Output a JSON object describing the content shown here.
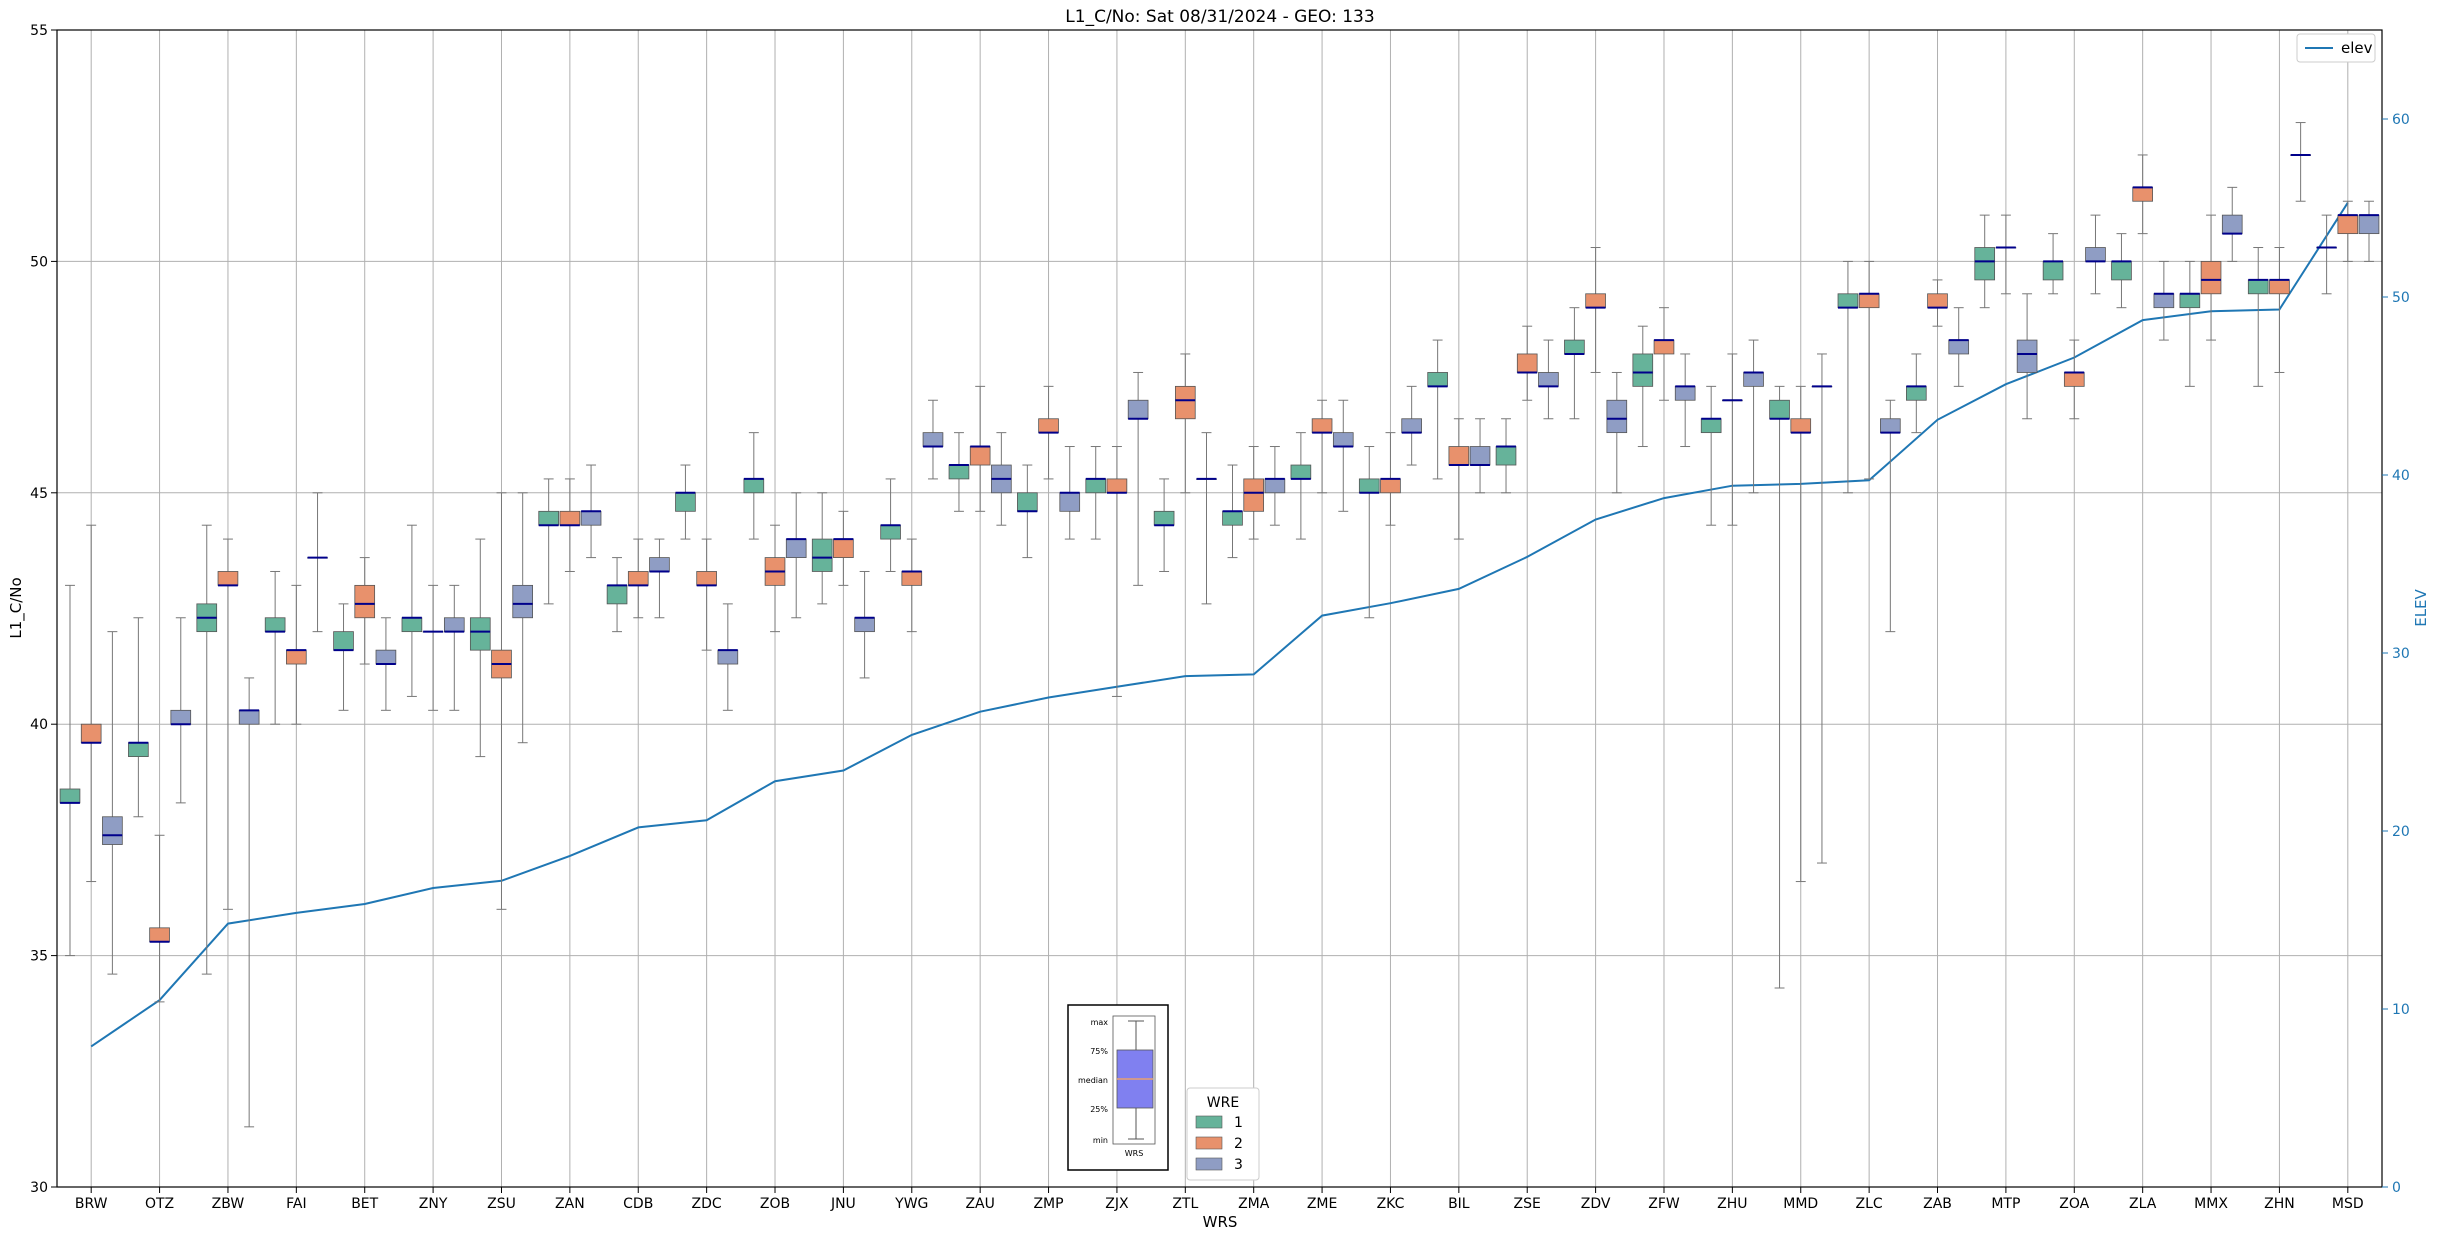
{
  "chart_data": {
    "type": "box",
    "title": "L1_C/No: Sat 08/31/2024 - GEO: 133",
    "xlabel": "WRS",
    "ylabel": "L1_C/No",
    "y2label": "ELEV",
    "ylim": [
      30,
      55
    ],
    "y2lim": [
      0,
      65
    ],
    "yticks": [
      30,
      35,
      40,
      45,
      50,
      55
    ],
    "y2ticks": [
      0,
      10,
      20,
      30,
      40,
      50,
      60
    ],
    "grid": true,
    "categories": [
      "BRW",
      "OTZ",
      "ZBW",
      "FAI",
      "BET",
      "ZNY",
      "ZSU",
      "ZAN",
      "CDB",
      "ZDC",
      "ZOB",
      "JNU",
      "YWG",
      "ZAU",
      "ZMP",
      "ZJX",
      "ZTL",
      "ZMA",
      "ZME",
      "ZKC",
      "BIL",
      "ZSE",
      "ZDV",
      "ZFW",
      "ZHU",
      "MMD",
      "ZLC",
      "ZAB",
      "MTP",
      "ZOA",
      "ZLA",
      "MMX",
      "ZHN",
      "MSD"
    ],
    "legend": {
      "title": "WRE",
      "placement": "lower-center",
      "entries": [
        {
          "label": "1",
          "color": "#66b39a"
        },
        {
          "label": "2",
          "color": "#e8916c"
        },
        {
          "label": "3",
          "color": "#8f9dc4"
        }
      ]
    },
    "line_legend": {
      "label": "elev",
      "placement": "upper-right",
      "color": "#1f77b4"
    },
    "key_labels": [
      "max",
      "75%",
      "median",
      "25%",
      "min",
      "WRS"
    ],
    "elev": [
      7.9,
      10.5,
      14.8,
      15.4,
      15.9,
      16.8,
      17.2,
      18.6,
      20.2,
      20.6,
      22.8,
      23.4,
      25.4,
      26.7,
      27.5,
      28.1,
      28.7,
      28.8,
      32.1,
      32.8,
      33.6,
      35.4,
      37.5,
      38.7,
      39.4,
      39.5,
      39.7,
      43.1,
      45.1,
      46.6,
      48.7,
      49.2,
      49.3,
      55.3
    ],
    "boxes": [
      {
        "category": "BRW",
        "wre": 1,
        "min": 35.0,
        "q1": 38.3,
        "median": 38.3,
        "q3": 38.6,
        "max": 43.0
      },
      {
        "category": "BRW",
        "wre": 2,
        "min": 36.6,
        "q1": 39.6,
        "median": 39.6,
        "q3": 40.0,
        "max": 44.3
      },
      {
        "category": "BRW",
        "wre": 3,
        "min": 34.6,
        "q1": 37.4,
        "median": 37.6,
        "q3": 38.0,
        "max": 42.0
      },
      {
        "category": "OTZ",
        "wre": 1,
        "min": 38.0,
        "q1": 39.3,
        "median": 39.6,
        "q3": 39.6,
        "max": 42.3
      },
      {
        "category": "OTZ",
        "wre": 2,
        "min": 34.0,
        "q1": 35.3,
        "median": 35.3,
        "q3": 35.6,
        "max": 37.6
      },
      {
        "category": "OTZ",
        "wre": 3,
        "min": 38.3,
        "q1": 40.0,
        "median": 40.0,
        "q3": 40.3,
        "max": 42.3
      },
      {
        "category": "ZBW",
        "wre": 1,
        "min": 34.6,
        "q1": 42.0,
        "median": 42.3,
        "q3": 42.6,
        "max": 44.3
      },
      {
        "category": "ZBW",
        "wre": 2,
        "min": 36.0,
        "q1": 43.0,
        "median": 43.0,
        "q3": 43.3,
        "max": 44.0
      },
      {
        "category": "ZBW",
        "wre": 3,
        "min": 31.3,
        "q1": 40.0,
        "median": 40.3,
        "q3": 40.3,
        "max": 41.0
      },
      {
        "category": "FAI",
        "wre": 1,
        "min": 40.0,
        "q1": 42.0,
        "median": 42.0,
        "q3": 42.3,
        "max": 43.3
      },
      {
        "category": "FAI",
        "wre": 2,
        "min": 40.0,
        "q1": 41.3,
        "median": 41.6,
        "q3": 41.6,
        "max": 43.0
      },
      {
        "category": "FAI",
        "wre": 3,
        "min": 42.0,
        "q1": 43.6,
        "median": 43.6,
        "q3": 43.6,
        "max": 45.0
      },
      {
        "category": "BET",
        "wre": 1,
        "min": 40.3,
        "q1": 41.6,
        "median": 41.6,
        "q3": 42.0,
        "max": 42.6
      },
      {
        "category": "BET",
        "wre": 2,
        "min": 41.3,
        "q1": 42.3,
        "median": 42.6,
        "q3": 43.0,
        "max": 43.6
      },
      {
        "category": "BET",
        "wre": 3,
        "min": 40.3,
        "q1": 41.3,
        "median": 41.3,
        "q3": 41.6,
        "max": 42.3
      },
      {
        "category": "ZNY",
        "wre": 1,
        "min": 40.6,
        "q1": 42.0,
        "median": 42.3,
        "q3": 42.3,
        "max": 44.3
      },
      {
        "category": "ZNY",
        "wre": 2,
        "min": 40.3,
        "q1": 42.0,
        "median": 42.0,
        "q3": 42.0,
        "max": 43.0
      },
      {
        "category": "ZNY",
        "wre": 3,
        "min": 40.3,
        "q1": 42.0,
        "median": 42.0,
        "q3": 42.3,
        "max": 43.0
      },
      {
        "category": "ZSU",
        "wre": 1,
        "min": 39.3,
        "q1": 41.6,
        "median": 42.0,
        "q3": 42.3,
        "max": 44.0
      },
      {
        "category": "ZSU",
        "wre": 2,
        "min": 36.0,
        "q1": 41.0,
        "median": 41.3,
        "q3": 41.6,
        "max": 45.0
      },
      {
        "category": "ZSU",
        "wre": 3,
        "min": 39.6,
        "q1": 42.3,
        "median": 42.6,
        "q3": 43.0,
        "max": 45.0
      },
      {
        "category": "ZAN",
        "wre": 1,
        "min": 42.6,
        "q1": 44.3,
        "median": 44.3,
        "q3": 44.6,
        "max": 45.3
      },
      {
        "category": "ZAN",
        "wre": 2,
        "min": 43.3,
        "q1": 44.3,
        "median": 44.3,
        "q3": 44.6,
        "max": 45.3
      },
      {
        "category": "ZAN",
        "wre": 3,
        "min": 43.6,
        "q1": 44.3,
        "median": 44.6,
        "q3": 44.6,
        "max": 45.6
      },
      {
        "category": "CDB",
        "wre": 1,
        "min": 42.0,
        "q1": 42.6,
        "median": 43.0,
        "q3": 43.0,
        "max": 43.6
      },
      {
        "category": "CDB",
        "wre": 2,
        "min": 42.3,
        "q1": 43.0,
        "median": 43.0,
        "q3": 43.3,
        "max": 44.0
      },
      {
        "category": "CDB",
        "wre": 3,
        "min": 42.3,
        "q1": 43.3,
        "median": 43.3,
        "q3": 43.6,
        "max": 44.0
      },
      {
        "category": "ZDC",
        "wre": 1,
        "min": 44.0,
        "q1": 44.6,
        "median": 45.0,
        "q3": 45.0,
        "max": 45.6
      },
      {
        "category": "ZDC",
        "wre": 2,
        "min": 41.6,
        "q1": 43.0,
        "median": 43.0,
        "q3": 43.3,
        "max": 44.0
      },
      {
        "category": "ZDC",
        "wre": 3,
        "min": 40.3,
        "q1": 41.3,
        "median": 41.6,
        "q3": 41.6,
        "max": 42.6
      },
      {
        "category": "ZOB",
        "wre": 1,
        "min": 44.0,
        "q1": 45.0,
        "median": 45.3,
        "q3": 45.3,
        "max": 46.3
      },
      {
        "category": "ZOB",
        "wre": 2,
        "min": 42.0,
        "q1": 43.0,
        "median": 43.3,
        "q3": 43.6,
        "max": 44.3
      },
      {
        "category": "ZOB",
        "wre": 3,
        "min": 42.3,
        "q1": 43.6,
        "median": 44.0,
        "q3": 44.0,
        "max": 45.0
      },
      {
        "category": "JNU",
        "wre": 1,
        "min": 42.6,
        "q1": 43.3,
        "median": 43.6,
        "q3": 44.0,
        "max": 45.0
      },
      {
        "category": "JNU",
        "wre": 2,
        "min": 43.0,
        "q1": 43.6,
        "median": 44.0,
        "q3": 44.0,
        "max": 44.6
      },
      {
        "category": "JNU",
        "wre": 3,
        "min": 41.0,
        "q1": 42.0,
        "median": 42.3,
        "q3": 42.3,
        "max": 43.3
      },
      {
        "category": "YWG",
        "wre": 1,
        "min": 43.3,
        "q1": 44.0,
        "median": 44.3,
        "q3": 44.3,
        "max": 45.3
      },
      {
        "category": "YWG",
        "wre": 2,
        "min": 42.0,
        "q1": 43.0,
        "median": 43.3,
        "q3": 43.3,
        "max": 44.0
      },
      {
        "category": "YWG",
        "wre": 3,
        "min": 45.3,
        "q1": 46.0,
        "median": 46.0,
        "q3": 46.3,
        "max": 47.0
      },
      {
        "category": "ZAU",
        "wre": 1,
        "min": 44.6,
        "q1": 45.3,
        "median": 45.6,
        "q3": 45.6,
        "max": 46.3
      },
      {
        "category": "ZAU",
        "wre": 2,
        "min": 44.6,
        "q1": 45.6,
        "median": 46.0,
        "q3": 46.0,
        "max": 47.3
      },
      {
        "category": "ZAU",
        "wre": 3,
        "min": 44.3,
        "q1": 45.0,
        "median": 45.3,
        "q3": 45.6,
        "max": 46.3
      },
      {
        "category": "ZMP",
        "wre": 1,
        "min": 43.6,
        "q1": 44.6,
        "median": 44.6,
        "q3": 45.0,
        "max": 45.6
      },
      {
        "category": "ZMP",
        "wre": 2,
        "min": 45.3,
        "q1": 46.3,
        "median": 46.3,
        "q3": 46.6,
        "max": 47.3
      },
      {
        "category": "ZMP",
        "wre": 3,
        "min": 44.0,
        "q1": 44.6,
        "median": 45.0,
        "q3": 45.0,
        "max": 46.0
      },
      {
        "category": "ZJX",
        "wre": 1,
        "min": 44.0,
        "q1": 45.0,
        "median": 45.3,
        "q3": 45.3,
        "max": 46.0
      },
      {
        "category": "ZJX",
        "wre": 2,
        "min": 40.6,
        "q1": 45.0,
        "median": 45.0,
        "q3": 45.3,
        "max": 46.0
      },
      {
        "category": "ZJX",
        "wre": 3,
        "min": 43.0,
        "q1": 46.6,
        "median": 46.6,
        "q3": 47.0,
        "max": 47.6
      },
      {
        "category": "ZTL",
        "wre": 1,
        "min": 43.3,
        "q1": 44.3,
        "median": 44.3,
        "q3": 44.6,
        "max": 45.3
      },
      {
        "category": "ZTL",
        "wre": 2,
        "min": 45.0,
        "q1": 46.6,
        "median": 47.0,
        "q3": 47.3,
        "max": 48.0
      },
      {
        "category": "ZTL",
        "wre": 3,
        "min": 42.6,
        "q1": 45.3,
        "median": 45.3,
        "q3": 45.3,
        "max": 46.3
      },
      {
        "category": "ZMA",
        "wre": 1,
        "min": 43.6,
        "q1": 44.3,
        "median": 44.6,
        "q3": 44.6,
        "max": 45.6
      },
      {
        "category": "ZMA",
        "wre": 2,
        "min": 44.0,
        "q1": 44.6,
        "median": 45.0,
        "q3": 45.3,
        "max": 46.0
      },
      {
        "category": "ZMA",
        "wre": 3,
        "min": 44.3,
        "q1": 45.0,
        "median": 45.3,
        "q3": 45.3,
        "max": 46.0
      },
      {
        "category": "ZME",
        "wre": 1,
        "min": 44.0,
        "q1": 45.3,
        "median": 45.3,
        "q3": 45.6,
        "max": 46.3
      },
      {
        "category": "ZME",
        "wre": 2,
        "min": 45.0,
        "q1": 46.3,
        "median": 46.3,
        "q3": 46.6,
        "max": 47.0
      },
      {
        "category": "ZME",
        "wre": 3,
        "min": 44.6,
        "q1": 46.0,
        "median": 46.0,
        "q3": 46.3,
        "max": 47.0
      },
      {
        "category": "ZKC",
        "wre": 1,
        "min": 42.3,
        "q1": 45.0,
        "median": 45.0,
        "q3": 45.3,
        "max": 46.0
      },
      {
        "category": "ZKC",
        "wre": 2,
        "min": 44.3,
        "q1": 45.0,
        "median": 45.3,
        "q3": 45.3,
        "max": 46.3
      },
      {
        "category": "ZKC",
        "wre": 3,
        "min": 45.6,
        "q1": 46.3,
        "median": 46.3,
        "q3": 46.6,
        "max": 47.3
      },
      {
        "category": "BIL",
        "wre": 1,
        "min": 45.3,
        "q1": 47.3,
        "median": 47.3,
        "q3": 47.6,
        "max": 48.3
      },
      {
        "category": "BIL",
        "wre": 2,
        "min": 44.0,
        "q1": 45.6,
        "median": 45.6,
        "q3": 46.0,
        "max": 46.6
      },
      {
        "category": "BIL",
        "wre": 3,
        "min": 45.0,
        "q1": 45.6,
        "median": 45.6,
        "q3": 46.0,
        "max": 46.6
      },
      {
        "category": "ZSE",
        "wre": 1,
        "min": 45.0,
        "q1": 45.6,
        "median": 46.0,
        "q3": 46.0,
        "max": 46.6
      },
      {
        "category": "ZSE",
        "wre": 2,
        "min": 47.0,
        "q1": 47.6,
        "median": 47.6,
        "q3": 48.0,
        "max": 48.6
      },
      {
        "category": "ZSE",
        "wre": 3,
        "min": 46.6,
        "q1": 47.3,
        "median": 47.3,
        "q3": 47.6,
        "max": 48.3
      },
      {
        "category": "ZDV",
        "wre": 1,
        "min": 46.6,
        "q1": 48.0,
        "median": 48.0,
        "q3": 48.3,
        "max": 49.0
      },
      {
        "category": "ZDV",
        "wre": 2,
        "min": 47.6,
        "q1": 49.0,
        "median": 49.0,
        "q3": 49.3,
        "max": 50.3
      },
      {
        "category": "ZDV",
        "wre": 3,
        "min": 45.0,
        "q1": 46.3,
        "median": 46.6,
        "q3": 47.0,
        "max": 47.6
      },
      {
        "category": "ZFW",
        "wre": 1,
        "min": 46.0,
        "q1": 47.3,
        "median": 47.6,
        "q3": 48.0,
        "max": 48.6
      },
      {
        "category": "ZFW",
        "wre": 2,
        "min": 47.0,
        "q1": 48.0,
        "median": 48.3,
        "q3": 48.3,
        "max": 49.0
      },
      {
        "category": "ZFW",
        "wre": 3,
        "min": 46.0,
        "q1": 47.0,
        "median": 47.3,
        "q3": 47.3,
        "max": 48.0
      },
      {
        "category": "ZHU",
        "wre": 1,
        "min": 44.3,
        "q1": 46.3,
        "median": 46.6,
        "q3": 46.6,
        "max": 47.3
      },
      {
        "category": "ZHU",
        "wre": 2,
        "min": 44.3,
        "q1": 47.0,
        "median": 47.0,
        "q3": 47.0,
        "max": 48.0
      },
      {
        "category": "ZHU",
        "wre": 3,
        "min": 45.0,
        "q1": 47.3,
        "median": 47.6,
        "q3": 47.6,
        "max": 48.3
      },
      {
        "category": "MMD",
        "wre": 1,
        "min": 34.3,
        "q1": 46.6,
        "median": 46.6,
        "q3": 47.0,
        "max": 47.3
      },
      {
        "category": "MMD",
        "wre": 2,
        "min": 36.6,
        "q1": 46.3,
        "median": 46.3,
        "q3": 46.6,
        "max": 47.3
      },
      {
        "category": "MMD",
        "wre": 3,
        "min": 37.0,
        "q1": 47.3,
        "median": 47.3,
        "q3": 47.3,
        "max": 48.0
      },
      {
        "category": "ZLC",
        "wre": 1,
        "min": 45.0,
        "q1": 49.0,
        "median": 49.0,
        "q3": 49.3,
        "max": 50.0
      },
      {
        "category": "ZLC",
        "wre": 2,
        "min": 45.3,
        "q1": 49.0,
        "median": 49.3,
        "q3": 49.3,
        "max": 50.0
      },
      {
        "category": "ZLC",
        "wre": 3,
        "min": 42.0,
        "q1": 46.3,
        "median": 46.3,
        "q3": 46.6,
        "max": 47.0
      },
      {
        "category": "ZAB",
        "wre": 1,
        "min": 46.3,
        "q1": 47.0,
        "median": 47.3,
        "q3": 47.3,
        "max": 48.0
      },
      {
        "category": "ZAB",
        "wre": 2,
        "min": 48.6,
        "q1": 49.0,
        "median": 49.0,
        "q3": 49.3,
        "max": 49.6
      },
      {
        "category": "ZAB",
        "wre": 3,
        "min": 47.3,
        "q1": 48.0,
        "median": 48.3,
        "q3": 48.3,
        "max": 49.0
      },
      {
        "category": "MTP",
        "wre": 1,
        "min": 49.0,
        "q1": 49.6,
        "median": 50.0,
        "q3": 50.3,
        "max": 51.0
      },
      {
        "category": "MTP",
        "wre": 2,
        "min": 49.3,
        "q1": 50.3,
        "median": 50.3,
        "q3": 50.3,
        "max": 51.0
      },
      {
        "category": "MTP",
        "wre": 3,
        "min": 46.6,
        "q1": 47.6,
        "median": 48.0,
        "q3": 48.3,
        "max": 49.3
      },
      {
        "category": "ZOA",
        "wre": 1,
        "min": 49.3,
        "q1": 49.6,
        "median": 50.0,
        "q3": 50.0,
        "max": 50.6
      },
      {
        "category": "ZOA",
        "wre": 2,
        "min": 46.6,
        "q1": 47.3,
        "median": 47.6,
        "q3": 47.6,
        "max": 48.3
      },
      {
        "category": "ZOA",
        "wre": 3,
        "min": 49.3,
        "q1": 50.0,
        "median": 50.0,
        "q3": 50.3,
        "max": 51.0
      },
      {
        "category": "ZLA",
        "wre": 1,
        "min": 49.0,
        "q1": 49.6,
        "median": 50.0,
        "q3": 50.0,
        "max": 50.6
      },
      {
        "category": "ZLA",
        "wre": 2,
        "min": 50.6,
        "q1": 51.3,
        "median": 51.6,
        "q3": 51.6,
        "max": 52.3
      },
      {
        "category": "ZLA",
        "wre": 3,
        "min": 48.3,
        "q1": 49.0,
        "median": 49.3,
        "q3": 49.3,
        "max": 50.0
      },
      {
        "category": "MMX",
        "wre": 1,
        "min": 47.3,
        "q1": 49.0,
        "median": 49.3,
        "q3": 49.3,
        "max": 50.0
      },
      {
        "category": "MMX",
        "wre": 2,
        "min": 48.3,
        "q1": 49.3,
        "median": 49.6,
        "q3": 50.0,
        "max": 51.0
      },
      {
        "category": "MMX",
        "wre": 3,
        "min": 50.0,
        "q1": 50.6,
        "median": 50.6,
        "q3": 51.0,
        "max": 51.6
      },
      {
        "category": "ZHN",
        "wre": 1,
        "min": 47.3,
        "q1": 49.3,
        "median": 49.6,
        "q3": 49.6,
        "max": 50.3
      },
      {
        "category": "ZHN",
        "wre": 2,
        "min": 47.6,
        "q1": 49.3,
        "median": 49.6,
        "q3": 49.6,
        "max": 50.3
      },
      {
        "category": "ZHN",
        "wre": 3,
        "min": 51.3,
        "q1": 52.3,
        "median": 52.3,
        "q3": 52.3,
        "max": 53.0
      },
      {
        "category": "MSD",
        "wre": 1,
        "min": 49.3,
        "q1": 50.3,
        "median": 50.3,
        "q3": 50.3,
        "max": 51.0
      },
      {
        "category": "MSD",
        "wre": 2,
        "min": 50.0,
        "q1": 50.6,
        "median": 51.0,
        "q3": 51.0,
        "max": 51.3
      },
      {
        "category": "MSD",
        "wre": 3,
        "min": 50.0,
        "q1": 50.6,
        "median": 51.0,
        "q3": 51.0,
        "max": 51.3
      }
    ]
  }
}
